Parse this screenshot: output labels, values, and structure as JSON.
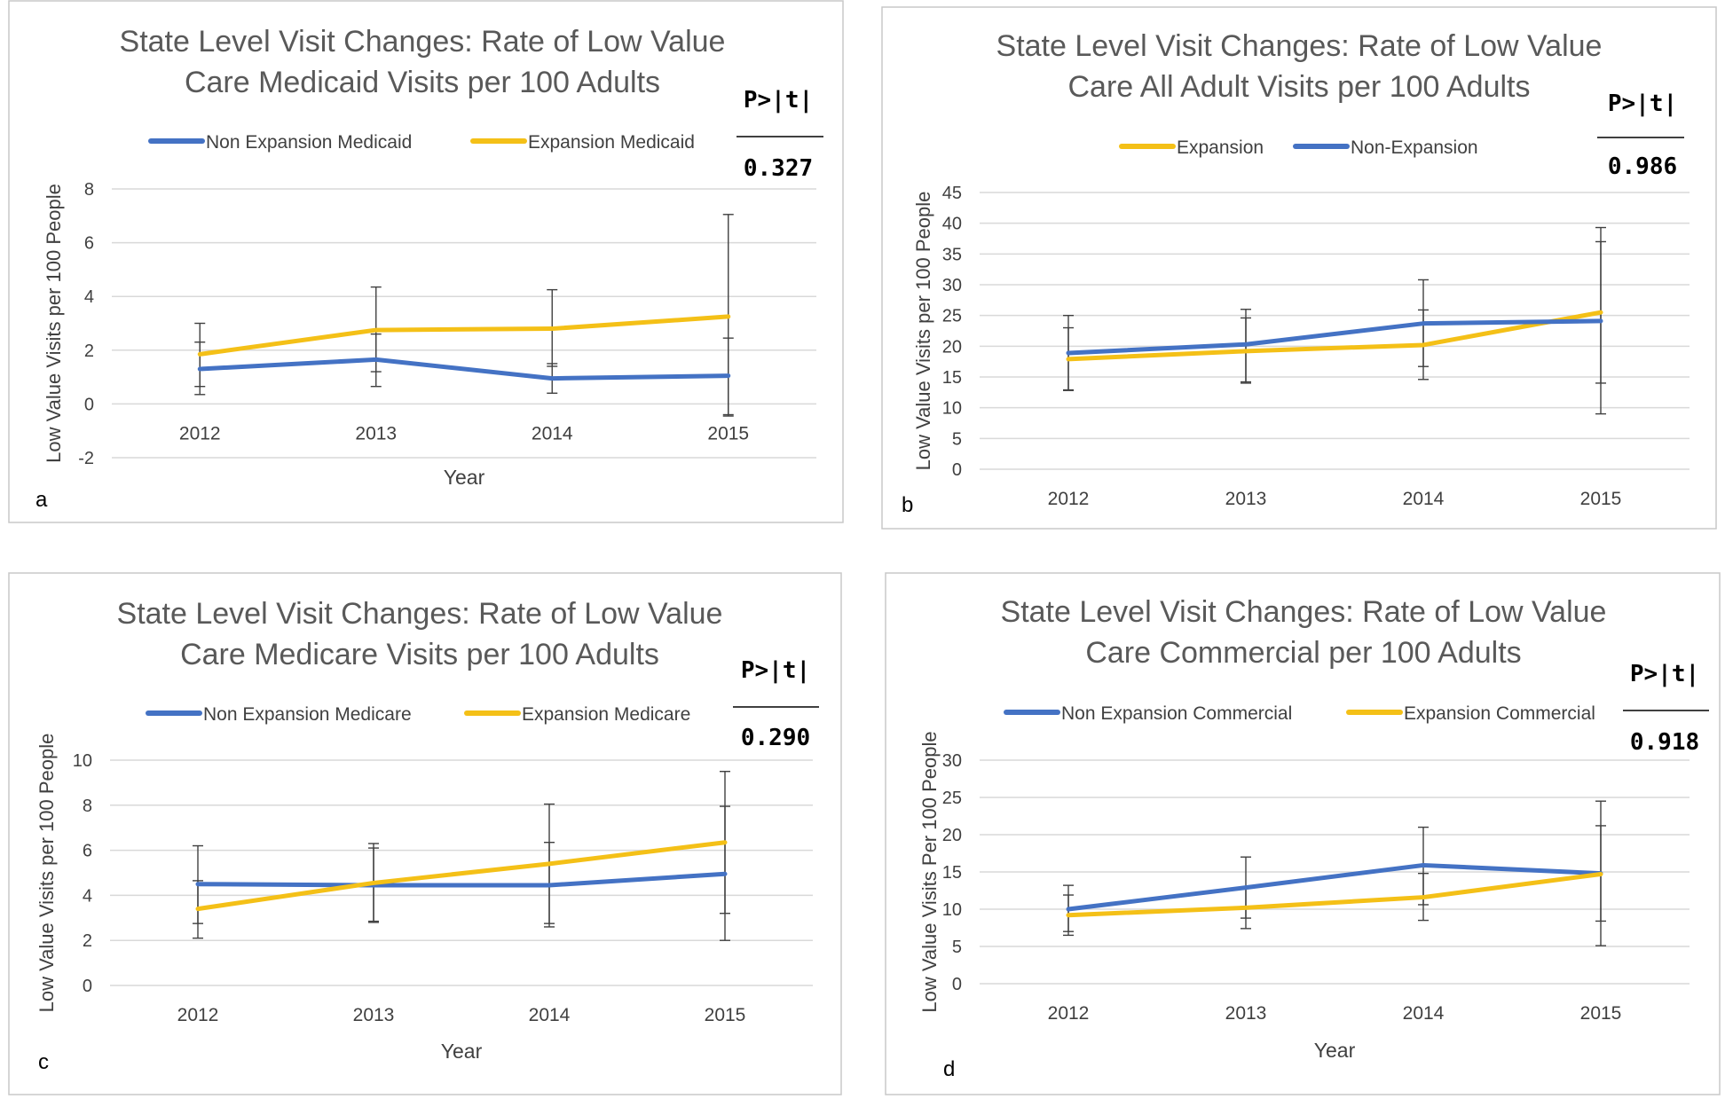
{
  "colors": {
    "blue": "#4472C4",
    "yellow": "#F4C017",
    "grid": "#D9D9D9",
    "text": "#404040",
    "frame": "#C8C8C8"
  },
  "chart_data": [
    {
      "type": "line",
      "panel_label": "a",
      "title_line1": "State Level Visit Changes: Rate of Low Value",
      "title_line2": "Care Medicaid Visits per 100 Adults",
      "xlabel": "Year",
      "ylabel": "Low Value Visits per 100 People",
      "categories": [
        "2012",
        "2013",
        "2014",
        "2015"
      ],
      "ylim": [
        -2,
        8
      ],
      "yticks": [
        "-2",
        "0",
        "2",
        "4",
        "6",
        "8"
      ],
      "pvalue_header": "P>|t|",
      "pvalue": "0.327",
      "series": [
        {
          "name": "Non Expansion  Medicaid",
          "color": "blue",
          "values": [
            1.3,
            1.65,
            0.95,
            1.05
          ],
          "err_low": [
            0.35,
            0.65,
            0.4,
            -0.45
          ],
          "err_high": [
            2.3,
            2.6,
            1.5,
            2.45
          ]
        },
        {
          "name": "Expansion Medicaid",
          "color": "yellow",
          "values": [
            1.85,
            2.75,
            2.8,
            3.25
          ],
          "err_low": [
            0.65,
            1.2,
            1.4,
            -0.4
          ],
          "err_high": [
            3.0,
            4.35,
            4.25,
            7.05
          ]
        }
      ]
    },
    {
      "type": "line",
      "panel_label": "b",
      "title_line1": "State Level Visit Changes: Rate of Low Value",
      "title_line2": "Care All Adult Visits per 100 Adults",
      "xlabel": "",
      "ylabel": "Low Value Visits per 100 People",
      "categories": [
        "2012",
        "2013",
        "2014",
        "2015"
      ],
      "ylim": [
        0,
        45
      ],
      "yticks": [
        "0",
        "5",
        "10",
        "15",
        "20",
        "25",
        "30",
        "35",
        "40",
        "45"
      ],
      "pvalue_header": "P>|t|",
      "pvalue": "0.986",
      "series": [
        {
          "name": "Expansion",
          "color": "yellow",
          "values": [
            17.9,
            19.2,
            20.2,
            25.5
          ],
          "err_low": [
            12.9,
            14.2,
            14.6,
            14.0
          ],
          "err_high": [
            23.0,
            24.6,
            25.9,
            37.0
          ]
        },
        {
          "name": "Non-Expansion",
          "color": "blue",
          "values": [
            18.9,
            20.3,
            23.7,
            24.1
          ],
          "err_low": [
            12.8,
            14.0,
            16.7,
            9.0
          ],
          "err_high": [
            25.0,
            26.0,
            30.8,
            39.3
          ]
        }
      ]
    },
    {
      "type": "line",
      "panel_label": "c",
      "title_line1": "State Level Visit Changes: Rate of Low Value",
      "title_line2": "Care Medicare Visits per 100 Adults",
      "xlabel": "Year",
      "ylabel": "Low Value Visits per 100 People",
      "categories": [
        "2012",
        "2013",
        "2014",
        "2015"
      ],
      "ylim": [
        0,
        10
      ],
      "yticks": [
        "0",
        "2",
        "4",
        "6",
        "8",
        "10"
      ],
      "pvalue_header": "P>|t|",
      "pvalue": "0.290",
      "series": [
        {
          "name": "Non Expansion Medicare",
          "color": "blue",
          "values": [
            4.5,
            4.45,
            4.45,
            4.95
          ],
          "err_low": [
            2.75,
            2.85,
            2.75,
            3.2
          ],
          "err_high": [
            6.2,
            6.1,
            6.35,
            7.95
          ]
        },
        {
          "name": "Expansion Medicare",
          "color": "yellow",
          "values": [
            3.4,
            4.55,
            5.4,
            6.35
          ],
          "err_low": [
            2.1,
            2.8,
            2.6,
            2.0
          ],
          "err_high": [
            4.65,
            6.3,
            8.05,
            9.5
          ]
        }
      ]
    },
    {
      "type": "line",
      "panel_label": "d",
      "title_line1": "State Level Visit Changes: Rate of Low Value",
      "title_line2": "Care Commercial per 100 Adults",
      "xlabel": "Year",
      "ylabel": "Low Value Visits Per 100 People",
      "categories": [
        "2012",
        "2013",
        "2014",
        "2015"
      ],
      "ylim": [
        0,
        30
      ],
      "yticks": [
        "0",
        "5",
        "10",
        "15",
        "20",
        "25",
        "30"
      ],
      "pvalue_header": "P>|t|",
      "pvalue": "0.918",
      "series": [
        {
          "name": "Non Expansion Commercial",
          "color": "blue",
          "values": [
            10.0,
            12.9,
            15.9,
            14.8
          ],
          "err_low": [
            7.0,
            8.8,
            10.6,
            8.4
          ],
          "err_high": [
            13.2,
            17.0,
            21.0,
            21.2
          ]
        },
        {
          "name": "Expansion Commercial",
          "color": "yellow",
          "values": [
            9.2,
            10.2,
            11.6,
            14.7
          ],
          "err_low": [
            6.5,
            7.4,
            8.5,
            5.1
          ],
          "err_high": [
            11.9,
            13.0,
            14.8,
            24.5
          ]
        }
      ]
    }
  ]
}
